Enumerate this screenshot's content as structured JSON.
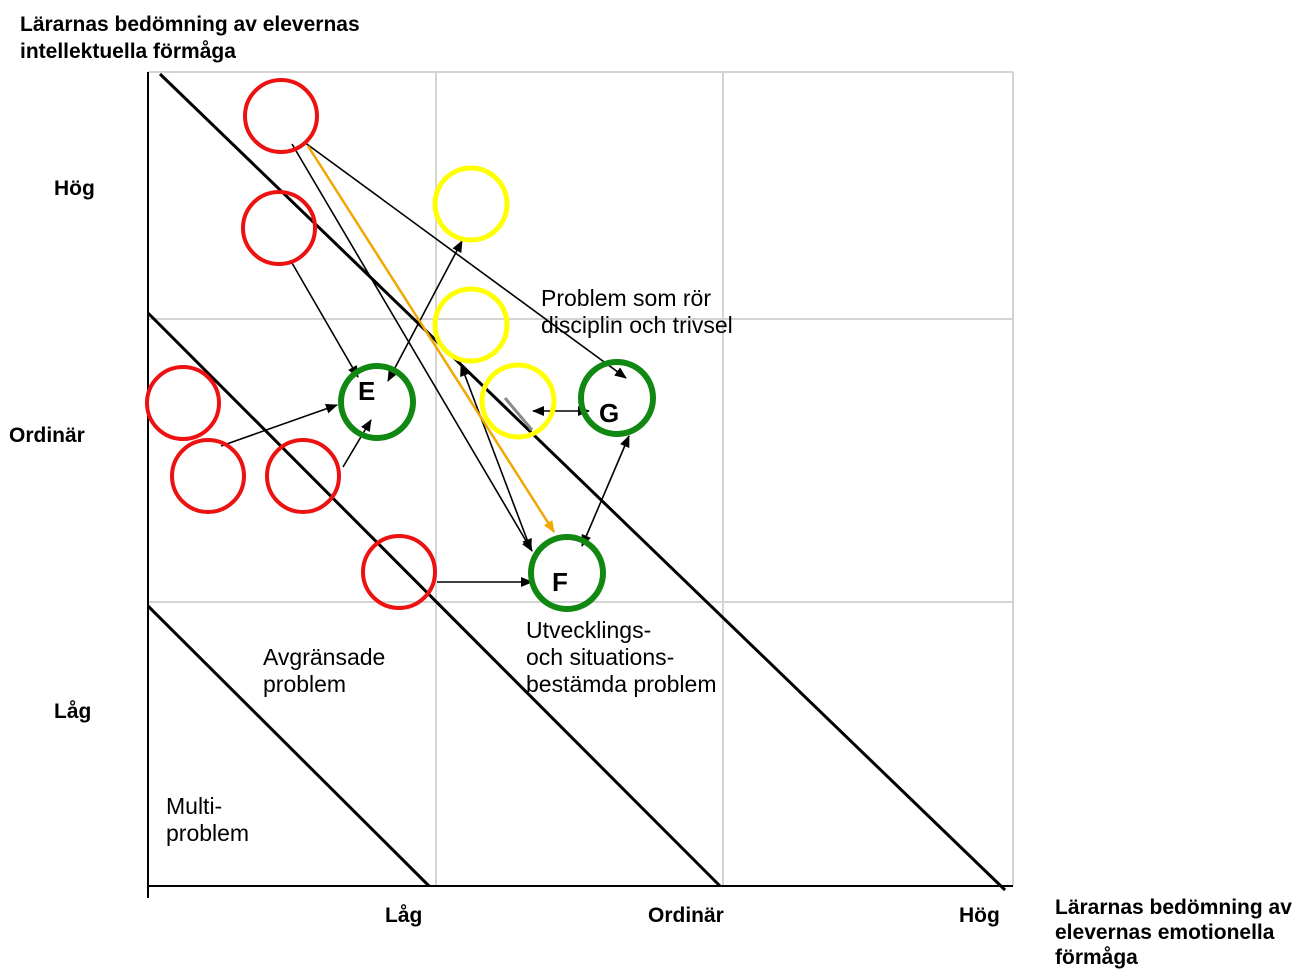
{
  "y_axis_title": "Lärarnas bedömning av elevernas intellektuella förmåga",
  "x_axis_title": "Lärarnas bedömning av elevernas emotionella förmåga",
  "y_ticks": {
    "high": "Hög",
    "normal": "Ordinär",
    "low": "Låg"
  },
  "x_ticks": {
    "low": "Låg",
    "normal": "Ordinär",
    "high": "Hög"
  },
  "zones": {
    "multi": "Multi-\nproblem",
    "limited": "Avgränsade\nproblem",
    "development": "Utvecklings-\noch situations-\nbestämda problem",
    "discipline": "Problem som rör\ndisciplin och trivsel"
  },
  "markers": {
    "e": "E",
    "f": "F",
    "g": "G"
  },
  "colors": {
    "red": "#ee1111",
    "yellow": "#ffff00",
    "green": "#118811",
    "orange_arrow": "#f0a800",
    "grid": "#d4d4d4"
  }
}
